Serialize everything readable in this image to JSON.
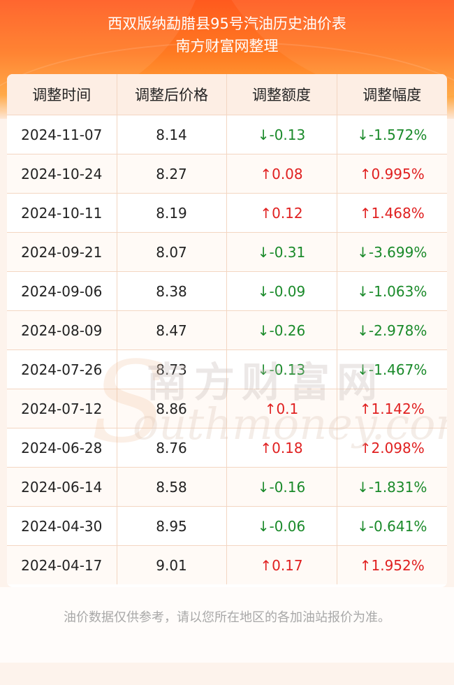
{
  "header": {
    "title_line1": "西双版纳勐腊县95号汽油历史油价表",
    "title_line2": "南方财富网整理"
  },
  "table": {
    "columns": [
      "调整时间",
      "调整后价格",
      "调整额度",
      "调整幅度"
    ],
    "rows": [
      {
        "date": "2024-11-07",
        "price": "8.14",
        "change": "↓-0.13",
        "percent": "↓-1.572%",
        "dir": "down"
      },
      {
        "date": "2024-10-24",
        "price": "8.27",
        "change": "↑0.08",
        "percent": "↑0.995%",
        "dir": "up"
      },
      {
        "date": "2024-10-11",
        "price": "8.19",
        "change": "↑0.12",
        "percent": "↑1.468%",
        "dir": "up"
      },
      {
        "date": "2024-09-21",
        "price": "8.07",
        "change": "↓-0.31",
        "percent": "↓-3.699%",
        "dir": "down"
      },
      {
        "date": "2024-09-06",
        "price": "8.38",
        "change": "↓-0.09",
        "percent": "↓-1.063%",
        "dir": "down"
      },
      {
        "date": "2024-08-09",
        "price": "8.47",
        "change": "↓-0.26",
        "percent": "↓-2.978%",
        "dir": "down"
      },
      {
        "date": "2024-07-26",
        "price": "8.73",
        "change": "↓-0.13",
        "percent": "↓-1.467%",
        "dir": "down"
      },
      {
        "date": "2024-07-12",
        "price": "8.86",
        "change": "↑0.1",
        "percent": "↑1.142%",
        "dir": "up"
      },
      {
        "date": "2024-06-28",
        "price": "8.76",
        "change": "↑0.18",
        "percent": "↑2.098%",
        "dir": "up"
      },
      {
        "date": "2024-06-14",
        "price": "8.58",
        "change": "↓-0.16",
        "percent": "↓-1.831%",
        "dir": "down"
      },
      {
        "date": "2024-04-30",
        "price": "8.95",
        "change": "↓-0.06",
        "percent": "↓-0.641%",
        "dir": "down"
      },
      {
        "date": "2024-04-17",
        "price": "9.01",
        "change": "↑0.17",
        "percent": "↑1.952%",
        "dir": "up"
      }
    ]
  },
  "watermark": {
    "initial": "S",
    "cn": "南方财富网",
    "en": "outhmoney.com"
  },
  "footer": {
    "note": "油价数据仅供参考，请以您所在地区的各加油站报价为准。"
  },
  "colors": {
    "up": "#e02020",
    "down": "#1a8a2a",
    "header_orange": "#ff6a1f"
  }
}
